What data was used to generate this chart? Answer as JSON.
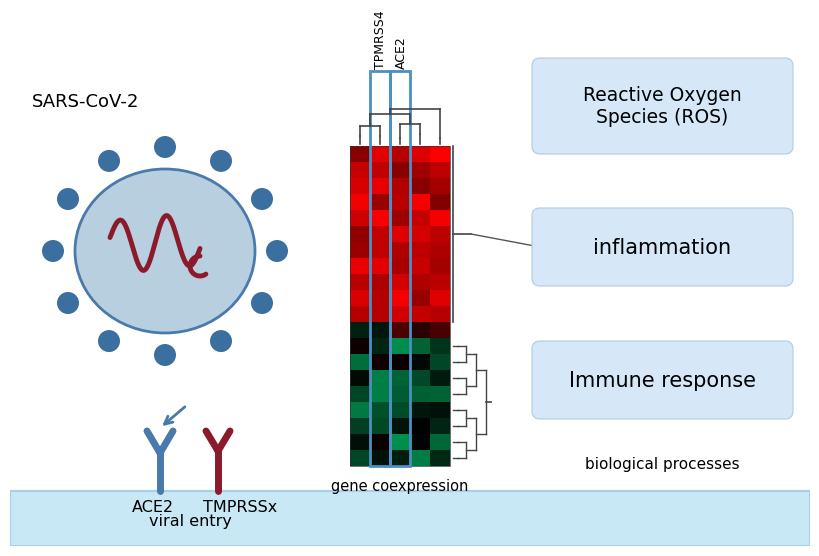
{
  "bg_color": "#ffffff",
  "membrane_color": "#c8e8f5",
  "membrane_edge": "#a8d0e8",
  "virus_body_color": "#b8cfe0",
  "virus_body_edge": "#4a7aab",
  "virus_spike_color": "#3a6fa0",
  "virus_rna_color": "#8b1a2a",
  "ace2_color": "#4a7aab",
  "tmprss_color": "#8b1a2a",
  "heatmap_hl_color": "#4a90c4",
  "box_color": "#d6e8f7",
  "box_edge": "#b0ccdf",
  "dend_color": "#444444",
  "sars_label": "SARS-CoV-2",
  "ace2_label": "ACE2",
  "viral_entry_label": "viral entry",
  "tmprss_label": "TMPRSSx",
  "gene_coexp_label": "gene coexpression",
  "bio_proc_label": "biological processes",
  "tpmrss4_label": "TPMRSS4",
  "ace2_col_label": "ACE2",
  "ros_label": "Reactive Oxygen\nSpecies (ROS)",
  "inflammation_label": "inflammation",
  "immune_label": "Immune response"
}
